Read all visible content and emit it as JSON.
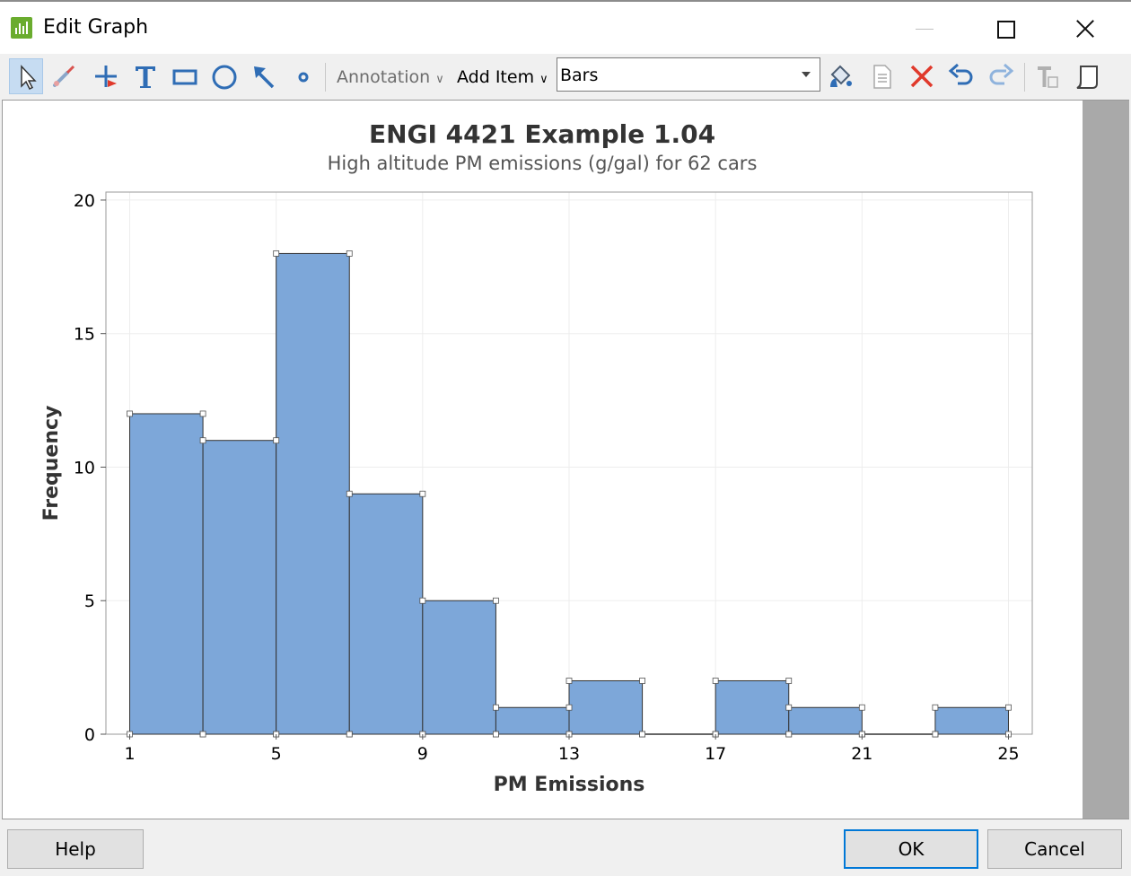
{
  "window": {
    "title": "Edit Graph",
    "icon": "minitab-graph-icon"
  },
  "toolbar": {
    "tools": [
      {
        "name": "select-tool-icon",
        "active": true
      },
      {
        "name": "brush-tool-icon"
      },
      {
        "name": "crosshair-tool-icon"
      },
      {
        "name": "text-tool-icon"
      },
      {
        "name": "rectangle-tool-icon"
      },
      {
        "name": "ellipse-tool-icon"
      },
      {
        "name": "arrow-tool-icon"
      },
      {
        "name": "marker-tool-icon"
      }
    ],
    "annotation_label": "Annotation",
    "add_item_label": "Add Item",
    "selected_item": "Bars",
    "right_tools": [
      {
        "name": "paint-bucket-icon"
      },
      {
        "name": "properties-icon"
      },
      {
        "name": "delete-icon"
      },
      {
        "name": "undo-icon"
      },
      {
        "name": "redo-icon"
      },
      {
        "name": "text-style-icon"
      },
      {
        "name": "copy-graph-icon"
      }
    ],
    "colors": {
      "accent": "#2f6db5",
      "delete": "#e0392b",
      "active_bg": "#c6dcf2"
    }
  },
  "chart_data": {
    "type": "bar",
    "title": "ENGI 4421 Example 1.04",
    "subtitle": "High altitude PM emissions (g/gal) for 62 cars",
    "xlabel": "PM Emissions",
    "ylabel": "Frequency",
    "bin_edges": [
      1,
      3,
      5,
      7,
      9,
      11,
      13,
      15,
      17,
      19,
      21,
      23,
      25
    ],
    "values": [
      12,
      11,
      18,
      9,
      5,
      1,
      2,
      0,
      2,
      1,
      0,
      1
    ],
    "xticks": [
      1,
      5,
      9,
      13,
      17,
      21,
      25
    ],
    "yticks": [
      0,
      5,
      10,
      15,
      20
    ],
    "xlim": [
      0.35,
      25.65
    ],
    "ylim": [
      0,
      20.3
    ],
    "bar_color": "#7da7d9",
    "grid": true,
    "selection_handles": true
  },
  "buttons": {
    "help": "Help",
    "ok": "OK",
    "cancel": "Cancel"
  }
}
